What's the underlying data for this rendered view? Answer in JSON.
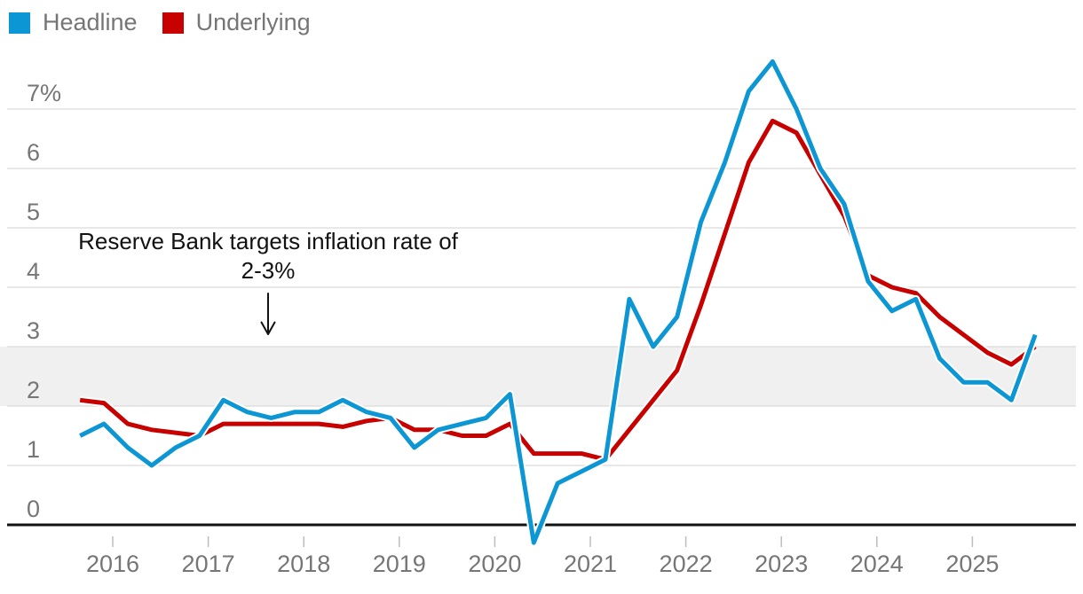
{
  "legend": {
    "items": [
      {
        "label": "Headline",
        "color": "#0d96d4"
      },
      {
        "label": "Underlying",
        "color": "#c70000"
      }
    ]
  },
  "annotation": {
    "line1": "Reserve Bank targets inflation rate of",
    "line2": "2-3%"
  },
  "y_axis": {
    "ticks": [
      {
        "label": "7%",
        "value": 7
      },
      {
        "label": "6",
        "value": 6
      },
      {
        "label": "5",
        "value": 5
      },
      {
        "label": "4",
        "value": 4
      },
      {
        "label": "3",
        "value": 3
      },
      {
        "label": "2",
        "value": 2
      },
      {
        "label": "1",
        "value": 1
      },
      {
        "label": "0",
        "value": 0
      }
    ]
  },
  "x_axis": {
    "ticks": [
      {
        "label": "2016",
        "value": 2016
      },
      {
        "label": "2017",
        "value": 2017
      },
      {
        "label": "2018",
        "value": 2018
      },
      {
        "label": "2019",
        "value": 2019
      },
      {
        "label": "2020",
        "value": 2020
      },
      {
        "label": "2021",
        "value": 2021
      },
      {
        "label": "2022",
        "value": 2022
      },
      {
        "label": "2023",
        "value": 2023
      },
      {
        "label": "2024",
        "value": 2024
      },
      {
        "label": "2025",
        "value": 2025
      }
    ]
  },
  "chart_data": {
    "type": "line",
    "x_start": 2015.5,
    "x_step": 0.25,
    "x_unit": "quarter",
    "series": [
      {
        "name": "Headline",
        "color": "#0d96d4",
        "values": [
          1.5,
          1.7,
          1.3,
          1.0,
          1.3,
          1.5,
          2.1,
          1.9,
          1.8,
          1.9,
          1.9,
          2.1,
          1.9,
          1.8,
          1.3,
          1.6,
          1.7,
          1.8,
          2.2,
          -0.3,
          0.7,
          0.9,
          1.1,
          3.8,
          3.0,
          3.5,
          5.1,
          6.1,
          7.3,
          7.8,
          7.0,
          6.0,
          5.4,
          4.1,
          3.6,
          3.8,
          2.8,
          2.4,
          2.4,
          2.1,
          3.2
        ]
      },
      {
        "name": "Underlying",
        "color": "#c70000",
        "values": [
          2.1,
          2.05,
          1.7,
          1.6,
          1.55,
          1.5,
          1.7,
          1.7,
          1.7,
          1.7,
          1.7,
          1.65,
          1.75,
          1.8,
          1.6,
          1.6,
          1.5,
          1.5,
          1.7,
          1.2,
          1.2,
          1.2,
          1.1,
          1.6,
          2.1,
          2.6,
          3.7,
          4.9,
          6.1,
          6.8,
          6.6,
          5.9,
          5.2,
          4.2,
          4.0,
          3.9,
          3.5,
          3.2,
          2.9,
          2.7,
          3.0
        ]
      }
    ],
    "target_band": {
      "from": 2,
      "to": 3,
      "color": "#f0f0f0"
    },
    "ylim": [
      -0.5,
      8
    ],
    "grid": true,
    "legend_position": "top-left",
    "colors": {
      "gridline": "#d9d9d9",
      "zero_axis": "#121212",
      "tick_mark": "#bdbdbd",
      "axis_text": "#767676",
      "annotation_text": "#121212"
    }
  }
}
